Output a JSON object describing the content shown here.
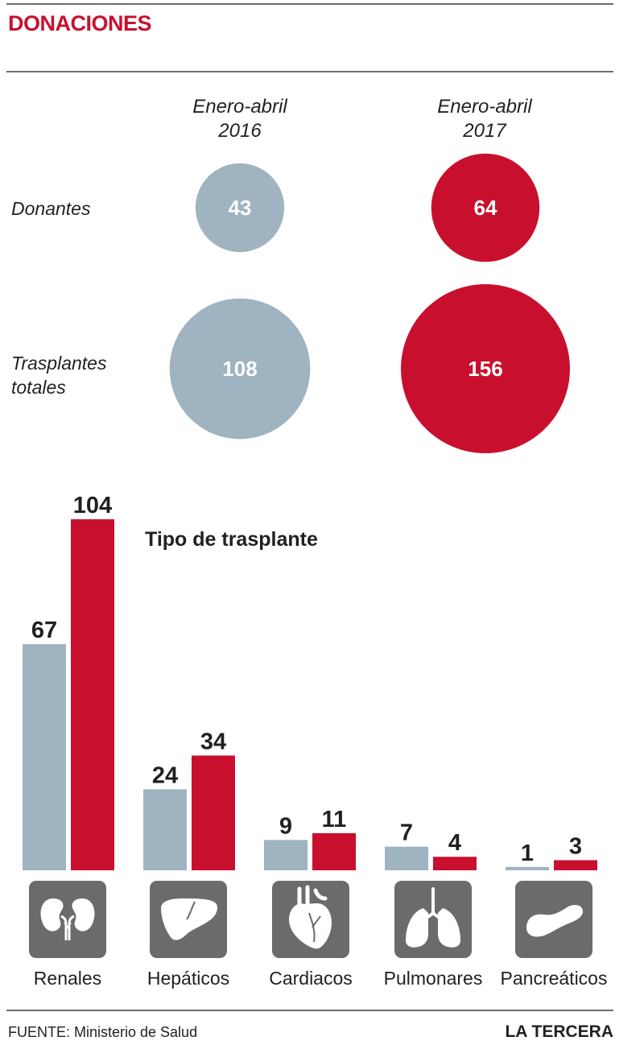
{
  "header": {
    "title": "DONACIONES"
  },
  "periods": [
    {
      "line1": "Enero-abril",
      "line2": "2016"
    },
    {
      "line1": "Enero-abril",
      "line2": "2017"
    }
  ],
  "rows": {
    "donantes": "Donantes",
    "trasplantes_line1": "Trasplantes",
    "trasplantes_line2": "totales"
  },
  "colors": {
    "y2016": "#9fb4c0",
    "y2017": "#c8102e",
    "title": "#c8102e",
    "icon_bg": "#6d6b69"
  },
  "chart_data": [
    {
      "type": "bubble",
      "years": [
        "2016",
        "2017"
      ],
      "series": [
        {
          "name": "Donantes",
          "values": [
            43,
            64
          ]
        },
        {
          "name": "Trasplantes totales",
          "values": [
            108,
            156
          ]
        }
      ]
    },
    {
      "type": "bar",
      "title": "Tipo de trasplante",
      "categories": [
        "Renales",
        "Hepáticos",
        "Cardiacos",
        "Pulmonares",
        "Pancreáticos"
      ],
      "series": [
        {
          "year": "2016",
          "values": [
            67,
            24,
            9,
            7,
            1
          ]
        },
        {
          "year": "2017",
          "values": [
            104,
            34,
            11,
            4,
            3
          ]
        }
      ],
      "ylim": [
        0,
        104
      ],
      "icons": [
        "kidneys-icon",
        "liver-icon",
        "heart-icon",
        "lungs-icon",
        "pancreas-icon"
      ]
    }
  ],
  "footer": {
    "source": "FUENTE: Ministerio de Salud",
    "brand": "LA TERCERA"
  }
}
